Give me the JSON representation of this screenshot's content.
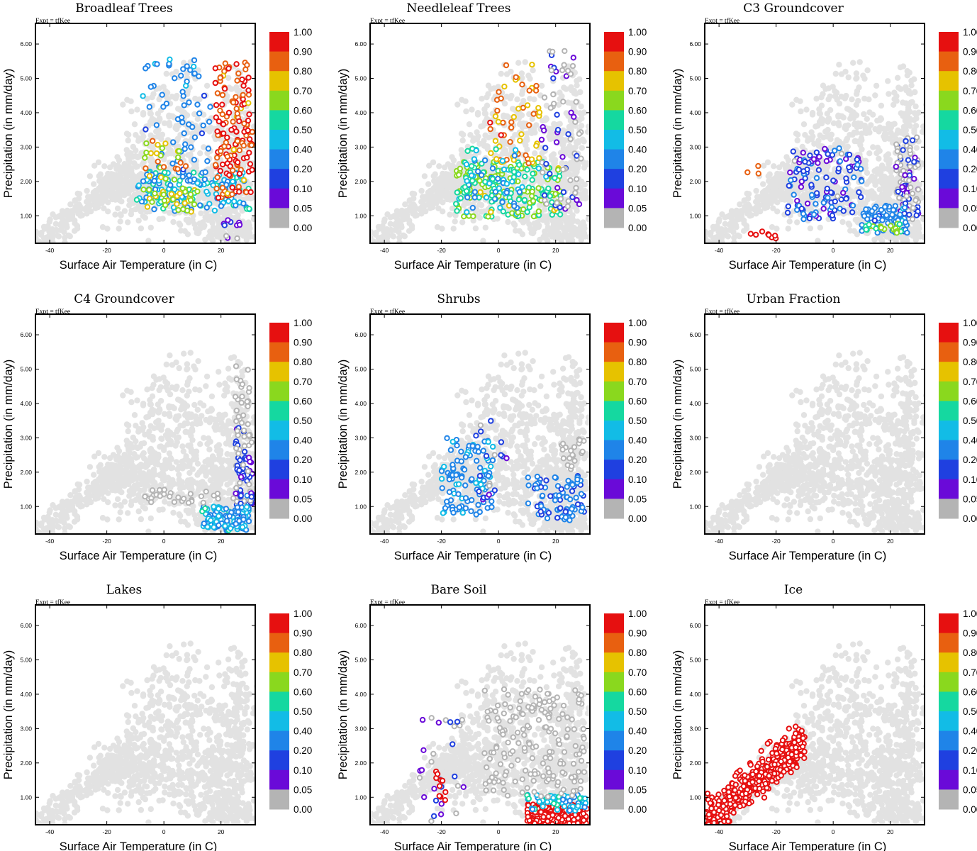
{
  "common": {
    "xlabel": "Surface Air Temperature (in C)",
    "ylabel": "Precipitation (in mm/day)",
    "expt_label": "Expt = tfKee",
    "xticks": [
      "-40",
      "-20",
      "0",
      "20"
    ],
    "yticks": [
      "1.00",
      "2.00",
      "3.00",
      "4.00",
      "5.00",
      "6.00"
    ],
    "colorbar_labels": [
      "1.00",
      "0.90",
      "0.80",
      "0.70",
      "0.60",
      "0.50",
      "0.40",
      "0.20",
      "0.10",
      "0.05",
      "0.00"
    ]
  },
  "chart_data": [
    {
      "type": "scatter",
      "title": "Broadleaf Trees",
      "xlabel": "Surface Air Temperature (in C)",
      "ylabel": "Precipitation (in mm/day)",
      "xlim": [
        -45,
        32
      ],
      "ylim": [
        0.2,
        6.6
      ],
      "colorbar": {
        "levels": [
          0.0,
          0.05,
          0.1,
          0.2,
          0.4,
          0.5,
          0.6,
          0.7,
          0.8,
          0.9,
          1.0
        ],
        "colors": [
          "#b4b4b4",
          "#6a0ad8",
          "#1f40e0",
          "#1f84e8",
          "#12bce6",
          "#15d8a0",
          "#8ad81e",
          "#e6c200",
          "#e86010",
          "#e61010"
        ]
      },
      "clusters": [
        {
          "xrange": [
            -10,
            30
          ],
          "yrange": [
            1.1,
            2.3
          ],
          "value": 0.45,
          "n": 150
        },
        {
          "xrange": [
            -8,
            18
          ],
          "yrange": [
            2.0,
            5.6
          ],
          "value": 0.3,
          "n": 70
        },
        {
          "xrange": [
            18,
            31
          ],
          "yrange": [
            1.4,
            5.5
          ],
          "value": 0.9,
          "n": 150
        },
        {
          "xrange": [
            -8,
            12
          ],
          "yrange": [
            1.1,
            1.8
          ],
          "value": 0.7,
          "n": 35
        },
        {
          "xrange": [
            -8,
            8
          ],
          "yrange": [
            2.0,
            3.4
          ],
          "value": 0.75,
          "n": 25
        },
        {
          "xrange": [
            20,
            27
          ],
          "yrange": [
            0.3,
            0.9
          ],
          "value": 0.05,
          "n": 10
        }
      ]
    },
    {
      "type": "scatter",
      "title": "Needleleaf Trees",
      "xlabel": "Surface Air Temperature (in C)",
      "ylabel": "Precipitation (in mm/day)",
      "xlim": [
        -45,
        32
      ],
      "ylim": [
        0.2,
        6.6
      ],
      "clusters": [
        {
          "xrange": [
            -15,
            22
          ],
          "yrange": [
            0.95,
            2.6
          ],
          "value": 0.6,
          "n": 200
        },
        {
          "xrange": [
            -3,
            15
          ],
          "yrange": [
            2.5,
            5.5
          ],
          "value": 0.8,
          "n": 60
        },
        {
          "xrange": [
            15,
            29
          ],
          "yrange": [
            1.2,
            5.8
          ],
          "value": 0.05,
          "n": 70
        },
        {
          "xrange": [
            -12,
            8
          ],
          "yrange": [
            1.2,
            3.0
          ],
          "value": 0.45,
          "n": 60
        }
      ]
    },
    {
      "type": "scatter",
      "title": "C3 Groundcover",
      "xlabel": "Surface Air Temperature (in C)",
      "ylabel": "Precipitation (in mm/day)",
      "xlim": [
        -45,
        32
      ],
      "ylim": [
        0.2,
        6.6
      ],
      "clusters": [
        {
          "xrange": [
            -16,
            10
          ],
          "yrange": [
            0.9,
            3.0
          ],
          "value": 0.15,
          "n": 130
        },
        {
          "xrange": [
            22,
            30
          ],
          "yrange": [
            0.9,
            3.3
          ],
          "value": 0.05,
          "n": 100
        },
        {
          "xrange": [
            10,
            26
          ],
          "yrange": [
            0.5,
            1.3
          ],
          "value": 0.3,
          "n": 70
        },
        {
          "xrange": [
            10,
            24
          ],
          "yrange": [
            0.5,
            0.8
          ],
          "value": 0.6,
          "n": 20
        },
        {
          "xrange": [
            -29,
            -20
          ],
          "yrange": [
            0.3,
            0.6
          ],
          "value": 0.95,
          "n": 8
        },
        {
          "xrange": [
            -31,
            -26
          ],
          "yrange": [
            2.2,
            2.5
          ],
          "value": 0.8,
          "n": 3
        }
      ]
    },
    {
      "type": "scatter",
      "title": "C4 Groundcover",
      "xlabel": "Surface Air Temperature (in C)",
      "ylabel": "Precipitation (in mm/day)",
      "xlim": [
        -45,
        32
      ],
      "ylim": [
        0.2,
        6.6
      ],
      "clusters": [
        {
          "xrange": [
            25,
            31
          ],
          "yrange": [
            0.7,
            3.3
          ],
          "value": 0.1,
          "n": 80
        },
        {
          "xrange": [
            13,
            30
          ],
          "yrange": [
            0.3,
            1.0
          ],
          "value": 0.4,
          "n": 120
        },
        {
          "xrange": [
            -8,
            25
          ],
          "yrange": [
            1.1,
            1.5
          ],
          "value": 0.0,
          "n": 30
        },
        {
          "xrange": [
            25,
            30
          ],
          "yrange": [
            2.5,
            5.2
          ],
          "value": 0.0,
          "n": 30
        }
      ]
    },
    {
      "type": "scatter",
      "title": "Shrubs",
      "xlabel": "Surface Air Temperature (in C)",
      "ylabel": "Precipitation (in mm/day)",
      "xlim": [
        -45,
        32
      ],
      "ylim": [
        0.2,
        6.6
      ],
      "clusters": [
        {
          "xrange": [
            -20,
            -2
          ],
          "yrange": [
            0.7,
            3.0
          ],
          "value": 0.35,
          "n": 110
        },
        {
          "xrange": [
            -8,
            3
          ],
          "yrange": [
            1.0,
            3.5
          ],
          "value": 0.1,
          "n": 20
        },
        {
          "xrange": [
            10,
            30
          ],
          "yrange": [
            0.6,
            1.9
          ],
          "value": 0.25,
          "n": 80
        },
        {
          "xrange": [
            22,
            30
          ],
          "yrange": [
            2.0,
            3.0
          ],
          "value": 0.0,
          "n": 20
        }
      ]
    },
    {
      "type": "scatter",
      "title": "Urban Fraction",
      "xlabel": "Surface Air Temperature (in C)",
      "ylabel": "Precipitation (in mm/day)",
      "xlim": [
        -45,
        32
      ],
      "ylim": [
        0.2,
        6.6
      ],
      "clusters": []
    },
    {
      "type": "scatter",
      "title": "Lakes",
      "xlabel": "Surface Air Temperature (in C)",
      "ylabel": "Precipitation (in mm/day)",
      "xlim": [
        -45,
        32
      ],
      "ylim": [
        0.2,
        6.6
      ],
      "clusters": []
    },
    {
      "type": "scatter",
      "title": "Bare Soil",
      "xlabel": "Surface Air Temperature (in C)",
      "ylabel": "Precipitation (in mm/day)",
      "xlim": [
        -45,
        32
      ],
      "ylim": [
        0.2,
        6.6
      ],
      "clusters": [
        {
          "xrange": [
            10,
            31
          ],
          "yrange": [
            0.2,
            0.8
          ],
          "value": 0.95,
          "n": 220
        },
        {
          "xrange": [
            10,
            31
          ],
          "yrange": [
            0.6,
            1.1
          ],
          "value": 0.45,
          "n": 60
        },
        {
          "xrange": [
            -5,
            30
          ],
          "yrange": [
            1.0,
            4.2
          ],
          "value": 0.0,
          "n": 180
        },
        {
          "xrange": [
            -28,
            -12
          ],
          "yrange": [
            0.3,
            3.5
          ],
          "value": 0.05,
          "n": 30
        },
        {
          "xrange": [
            -22,
            -18
          ],
          "yrange": [
            0.9,
            1.9
          ],
          "value": 0.95,
          "n": 10
        }
      ]
    },
    {
      "type": "scatter",
      "title": "Ice",
      "xlabel": "Surface Air Temperature (in C)",
      "ylabel": "Precipitation (in mm/day)",
      "xlim": [
        -45,
        32
      ],
      "ylim": [
        0.2,
        6.6
      ],
      "clusters": [
        {
          "xrange": [
            -45,
            -10
          ],
          "yrange": [
            0.2,
            3.3
          ],
          "value": 1.0,
          "n": 400,
          "shape": "band"
        }
      ]
    }
  ]
}
